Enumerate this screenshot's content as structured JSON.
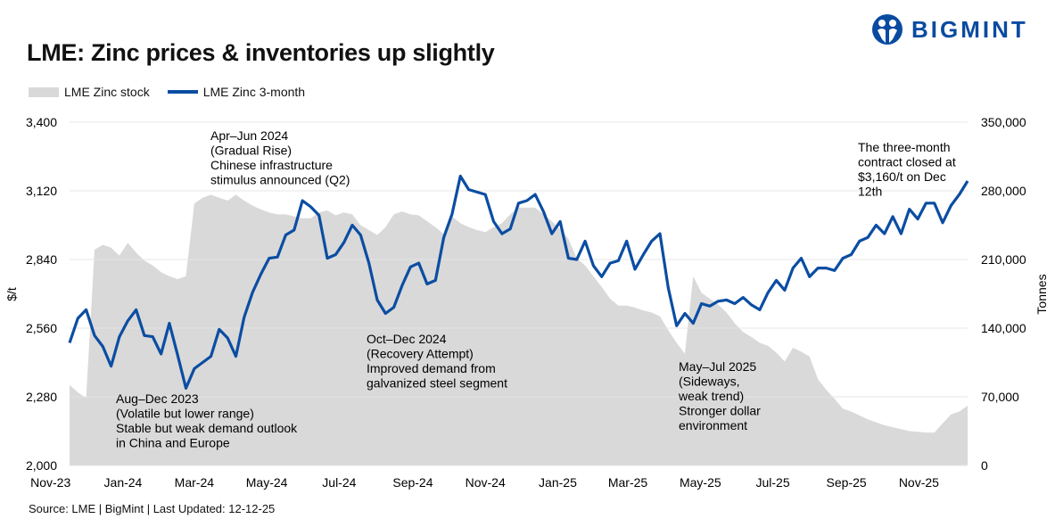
{
  "header": {
    "title": "LME: Zinc prices & inventories up slightly",
    "logo_text": "BIGMINT",
    "source": "Source: LME | BigMint | Last Updated: 12-12-25"
  },
  "colors": {
    "price_line": "#0b4da2",
    "stock_area": "#d9d9d9",
    "brand": "#0a4ba0"
  },
  "chart_data": {
    "type": "line+area",
    "title": "LME: Zinc prices & inventories up slightly",
    "legend_position": "top-left",
    "grid": true,
    "legend": [
      "LME Zinc stock",
      "LME Zinc 3-month"
    ],
    "ylabel_left": "$/t",
    "ylabel_right": "Tonnes",
    "ylim_left": [
      2000,
      3400
    ],
    "ylim_right": [
      0,
      350000
    ],
    "yticks_left": [
      "2,000",
      "2,280",
      "2,560",
      "2,840",
      "3,120",
      "3,400"
    ],
    "yticks_right": [
      "0",
      "70,000",
      "140,000",
      "210,000",
      "280,000",
      "350,000"
    ],
    "xticks": [
      {
        "label": "Nov-23",
        "date": "2023-11-01"
      },
      {
        "label": "Jan-24",
        "date": "2024-01-01"
      },
      {
        "label": "Mar-24",
        "date": "2024-03-01"
      },
      {
        "label": "May-24",
        "date": "2024-05-01"
      },
      {
        "label": "Jul-24",
        "date": "2024-07-01"
      },
      {
        "label": "Sep-24",
        "date": "2024-09-01"
      },
      {
        "label": "Nov-24",
        "date": "2024-11-01"
      },
      {
        "label": "Jan-25",
        "date": "2025-01-01"
      },
      {
        "label": "Mar-25",
        "date": "2025-03-01"
      },
      {
        "label": "May-25",
        "date": "2025-05-01"
      },
      {
        "label": "Jul-25",
        "date": "2025-07-01"
      },
      {
        "label": "Sep-25",
        "date": "2025-09-01"
      },
      {
        "label": "Nov-25",
        "date": "2025-11-01"
      }
    ],
    "dates": [
      "2023-11-17",
      "2023-11-24",
      "2023-12-01",
      "2023-12-08",
      "2023-12-15",
      "2023-12-22",
      "2023-12-29",
      "2024-01-05",
      "2024-01-12",
      "2024-01-19",
      "2024-01-26",
      "2024-02-02",
      "2024-02-09",
      "2024-02-16",
      "2024-02-23",
      "2024-03-01",
      "2024-03-08",
      "2024-03-15",
      "2024-03-22",
      "2024-03-29",
      "2024-04-05",
      "2024-04-12",
      "2024-04-19",
      "2024-04-26",
      "2024-05-03",
      "2024-05-10",
      "2024-05-17",
      "2024-05-24",
      "2024-05-31",
      "2024-06-07",
      "2024-06-14",
      "2024-06-21",
      "2024-06-28",
      "2024-07-05",
      "2024-07-12",
      "2024-07-19",
      "2024-07-26",
      "2024-08-02",
      "2024-08-09",
      "2024-08-16",
      "2024-08-23",
      "2024-08-30",
      "2024-09-06",
      "2024-09-13",
      "2024-09-20",
      "2024-09-27",
      "2024-10-04",
      "2024-10-11",
      "2024-10-18",
      "2024-10-25",
      "2024-11-01",
      "2024-11-08",
      "2024-11-15",
      "2024-11-22",
      "2024-11-29",
      "2024-12-06",
      "2024-12-13",
      "2024-12-20",
      "2024-12-27",
      "2025-01-03",
      "2025-01-10",
      "2025-01-17",
      "2025-01-24",
      "2025-01-31",
      "2025-02-07",
      "2025-02-14",
      "2025-02-21",
      "2025-02-28",
      "2025-03-07",
      "2025-03-14",
      "2025-03-21",
      "2025-03-28",
      "2025-04-04",
      "2025-04-11",
      "2025-04-18",
      "2025-04-25",
      "2025-05-02",
      "2025-05-09",
      "2025-05-16",
      "2025-05-23",
      "2025-05-30",
      "2025-06-06",
      "2025-06-13",
      "2025-06-20",
      "2025-06-27",
      "2025-07-04",
      "2025-07-11",
      "2025-07-18",
      "2025-07-25",
      "2025-08-01",
      "2025-08-08",
      "2025-08-15",
      "2025-08-22",
      "2025-08-29",
      "2025-09-05",
      "2025-09-12",
      "2025-09-19",
      "2025-09-26",
      "2025-10-03",
      "2025-10-10",
      "2025-10-17",
      "2025-10-24",
      "2025-10-31",
      "2025-11-07",
      "2025-11-14",
      "2025-11-21",
      "2025-11-28",
      "2025-12-05",
      "2025-12-12"
    ],
    "series": [
      {
        "name": "LME Zinc stock",
        "axis": "right",
        "type": "area",
        "values": [
          82000,
          74500,
          69000,
          220000,
          225000,
          222000,
          214000,
          227000,
          217000,
          209000,
          204000,
          197000,
          193000,
          190000,
          193000,
          267000,
          273000,
          276000,
          273000,
          270000,
          276000,
          270000,
          265000,
          261000,
          258000,
          256000,
          256000,
          254000,
          252000,
          252000,
          258000,
          260000,
          255000,
          258000,
          256000,
          245000,
          240000,
          235000,
          243000,
          256000,
          259000,
          256000,
          255000,
          249000,
          243000,
          236000,
          254000,
          247000,
          243000,
          240000,
          238000,
          243000,
          247000,
          256000,
          263000,
          263000,
          263000,
          256000,
          249000,
          241000,
          231000,
          211000,
          204000,
          193000,
          182000,
          170000,
          163000,
          163000,
          161000,
          158000,
          156000,
          152000,
          138000,
          125000,
          114000,
          193000,
          176000,
          170000,
          164000,
          156000,
          145000,
          136000,
          131000,
          125000,
          122000,
          115000,
          106000,
          120000,
          116000,
          111000,
          88000,
          77000,
          68000,
          58000,
          55000,
          51000,
          47000,
          44000,
          41000,
          39000,
          37000,
          35000,
          34500,
          33500,
          33500,
          43000,
          52000,
          55000,
          61000
        ]
      },
      {
        "name": "LME Zinc 3-month",
        "axis": "left",
        "type": "line",
        "values": [
          2500,
          2600,
          2635,
          2530,
          2485,
          2405,
          2525,
          2590,
          2635,
          2530,
          2525,
          2455,
          2580,
          2450,
          2315,
          2395,
          2420,
          2445,
          2555,
          2520,
          2445,
          2605,
          2705,
          2780,
          2845,
          2850,
          2940,
          2960,
          3080,
          3055,
          3020,
          2845,
          2860,
          2910,
          2980,
          2940,
          2825,
          2675,
          2620,
          2645,
          2735,
          2810,
          2825,
          2740,
          2755,
          2930,
          3025,
          3180,
          3125,
          3115,
          3105,
          2995,
          2945,
          2965,
          3070,
          3080,
          3105,
          3035,
          2945,
          2995,
          2845,
          2840,
          2915,
          2815,
          2770,
          2825,
          2835,
          2915,
          2800,
          2860,
          2915,
          2945,
          2725,
          2570,
          2620,
          2580,
          2660,
          2650,
          2670,
          2675,
          2660,
          2685,
          2655,
          2635,
          2705,
          2755,
          2715,
          2805,
          2845,
          2770,
          2805,
          2805,
          2795,
          2845,
          2860,
          2915,
          2930,
          2980,
          2945,
          3015,
          2945,
          3045,
          3005,
          3070,
          3070,
          2990,
          3060,
          3105,
          3160
        ]
      }
    ],
    "annotations": [
      {
        "lines": [
          "Apr–Jun 2024",
          "(Gradual Rise)",
          "Chinese infrastructure",
          "stimulus announced (Q2)"
        ]
      },
      {
        "lines": [
          "Aug–Dec 2023",
          "(Volatile but lower range)",
          "Stable but weak demand outlook",
          "in China and Europe"
        ]
      },
      {
        "lines": [
          "Oct–Dec 2024",
          "(Recovery Attempt)",
          "Improved demand from",
          "galvanized steel segment"
        ]
      },
      {
        "lines": [
          "May–Jul 2025",
          "(Sideways,",
          "weak trend)",
          "Stronger dollar",
          "environment"
        ]
      },
      {
        "lines": [
          "The three-month",
          "contract closed at",
          "$3,160/t on Dec",
          "12th"
        ]
      }
    ]
  }
}
